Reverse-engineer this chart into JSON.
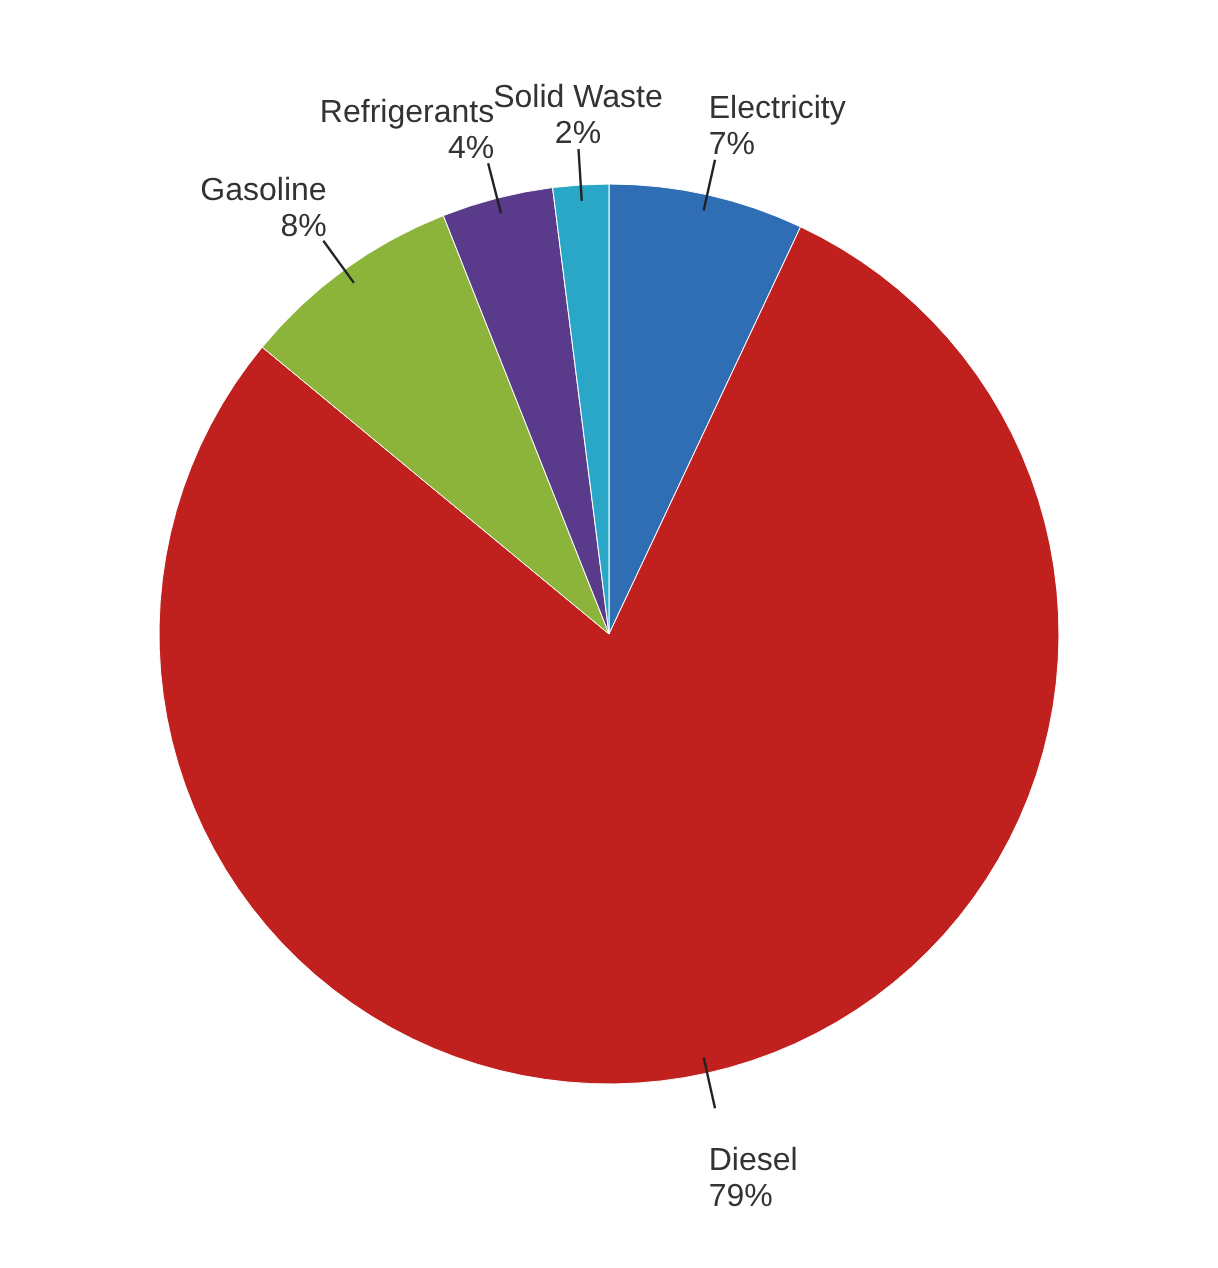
{
  "chart_data": {
    "type": "pie",
    "categories": [
      "Electricity",
      "Diesel",
      "Gasoline",
      "Refrigerants",
      "Solid Waste"
    ],
    "values": [
      7,
      79,
      8,
      4,
      2
    ],
    "value_labels": [
      "7%",
      "79%",
      "8%",
      "4%",
      "2%"
    ],
    "colors": [
      "#2f6db5",
      "#c0211f",
      "#8cb43a",
      "#5a3a8a",
      "#2aa6c6"
    ]
  }
}
